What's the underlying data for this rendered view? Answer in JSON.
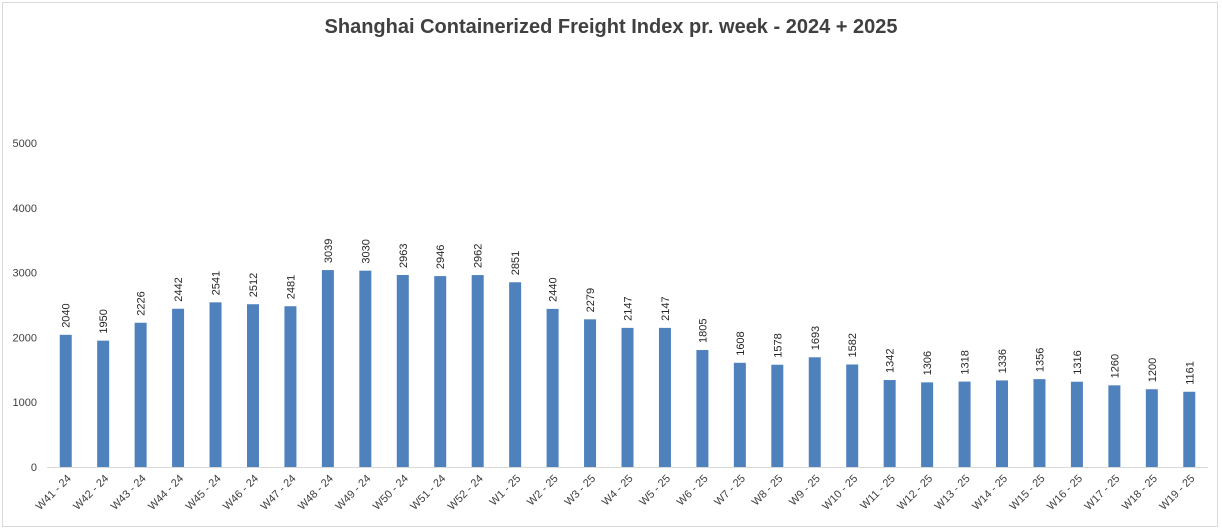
{
  "chart_data": {
    "type": "bar",
    "title": "Shanghai Containerized Freight Index pr. week - 2024 + 2025",
    "categories": [
      "W41 - 24",
      "W42 - 24",
      "W43 - 24",
      "W44 - 24",
      "W45 - 24",
      "W46 - 24",
      "W47 - 24",
      "W48 - 24",
      "W49 - 24",
      "W50 - 24",
      "W51 - 24",
      "W52 - 24",
      "W1 - 25",
      "W2 - 25",
      "W3 - 25",
      "W4 - 25",
      "W5 - 25",
      "W6 - 25",
      "W7 - 25",
      "W8 - 25",
      "W9 - 25",
      "W10 - 25",
      "W11 - 25",
      "W12 - 25",
      "W13 - 25",
      "W14 - 25",
      "W15 - 25",
      "W16 - 25",
      "W17 - 25",
      "W18 - 25",
      "W19 - 25"
    ],
    "values": [
      2040,
      1950,
      2226,
      2442,
      2541,
      2512,
      2481,
      3039,
      3030,
      2963,
      2946,
      2962,
      2851,
      2440,
      2279,
      2147,
      2147,
      1805,
      1608,
      1578,
      1693,
      1582,
      1342,
      1306,
      1318,
      1336,
      1356,
      1316,
      1260,
      1200,
      1161
    ],
    "yticks": [
      "0",
      "1000",
      "2000",
      "3000",
      "4000",
      "5000"
    ],
    "ylim": [
      0,
      5000
    ],
    "grid": false,
    "legend": "none",
    "bar_color": "#4f81bd"
  }
}
